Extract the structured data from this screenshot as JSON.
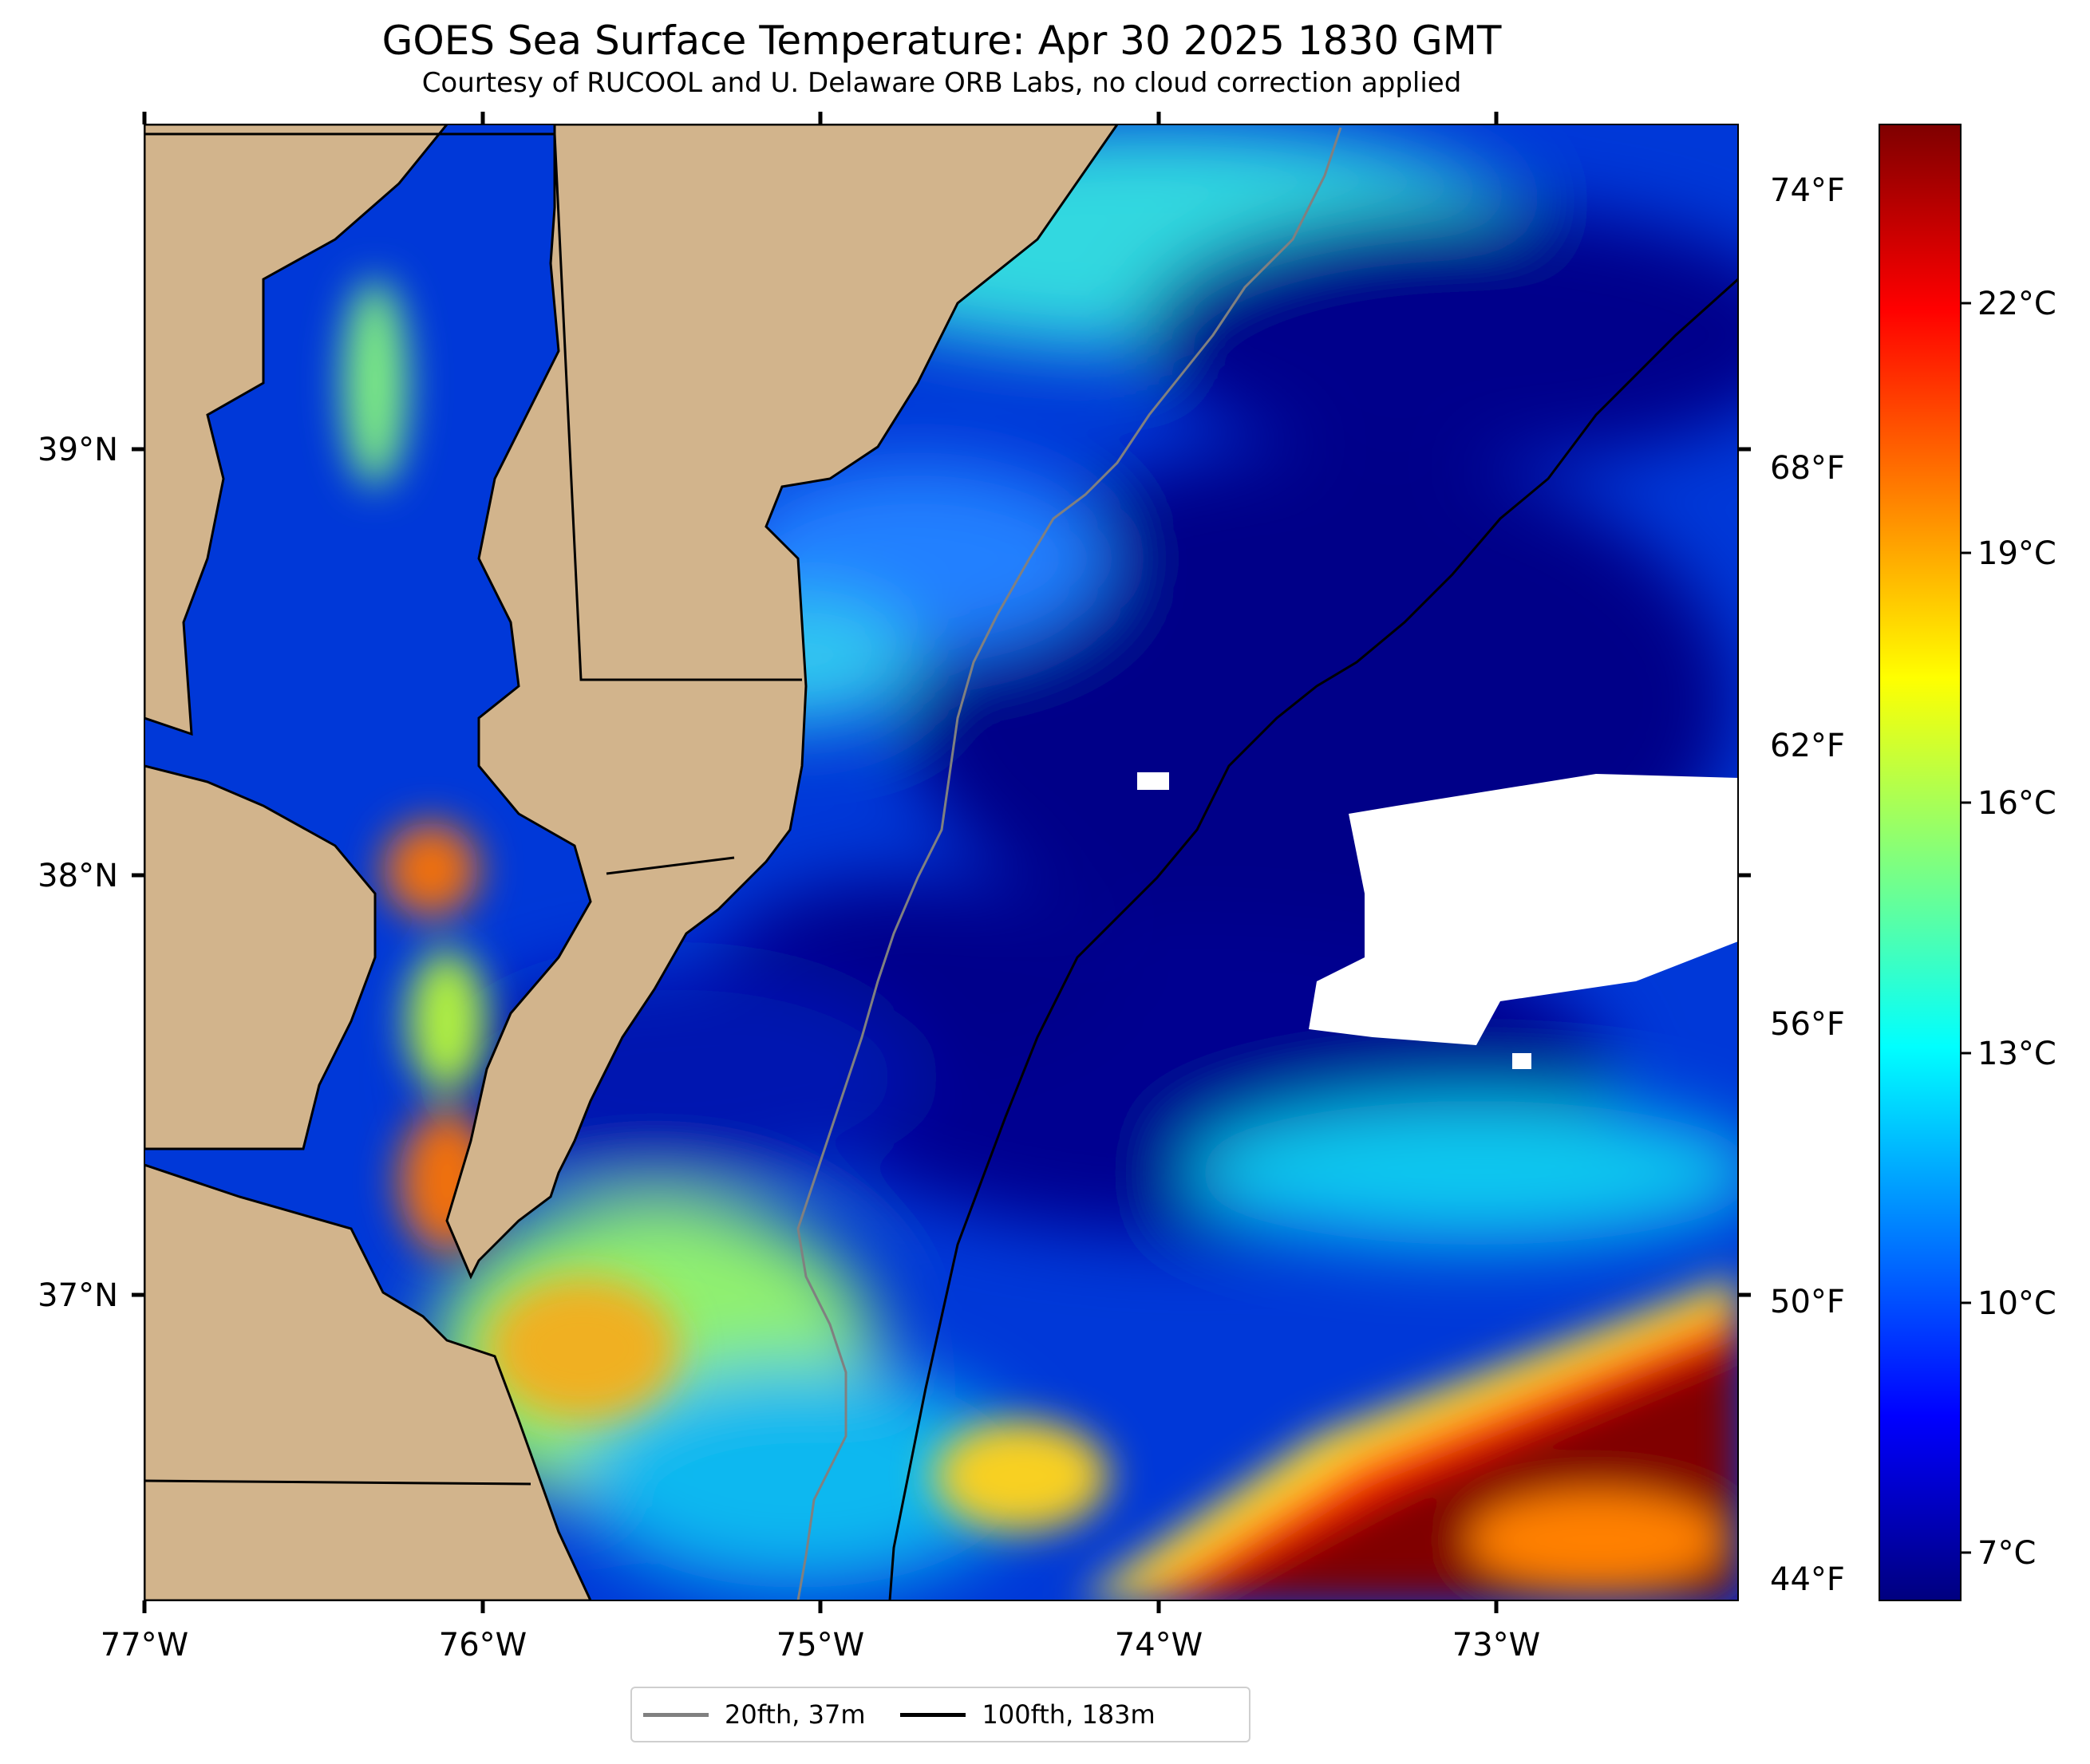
{
  "title": "GOES Sea Surface Temperature: Apr 30 2025 1830 GMT",
  "subtitle": "Courtesy of RUCOOL and U. Delaware ORB Labs, no cloud correction applied",
  "axes": {
    "longitude_labels": [
      "77°W",
      "76°W",
      "75°W",
      "74°W",
      "73°W"
    ],
    "latitude_labels": [
      "39°N",
      "38°N",
      "37°N"
    ],
    "fahrenheit_labels": [
      "74°F",
      "68°F",
      "62°F",
      "56°F",
      "50°F",
      "44°F"
    ],
    "colorbar_labels": [
      "22°C",
      "19°C",
      "16°C",
      "13°C",
      "10°C",
      "7°C"
    ]
  },
  "legend": [
    {
      "label": "20fth, 37m",
      "color": "#808080"
    },
    {
      "label": "100fth, 183m",
      "color": "#000000"
    }
  ],
  "colors": {
    "land": "#d2b48c",
    "water_warm": "#800000",
    "water_cold": "#00008b",
    "no_data": "#ffffff"
  },
  "colorbar_stops": [
    "#00007f",
    "#0000ff",
    "#007fff",
    "#00ffff",
    "#7fff7f",
    "#ffff00",
    "#ff7f00",
    "#ff0000",
    "#7f0000"
  ]
}
